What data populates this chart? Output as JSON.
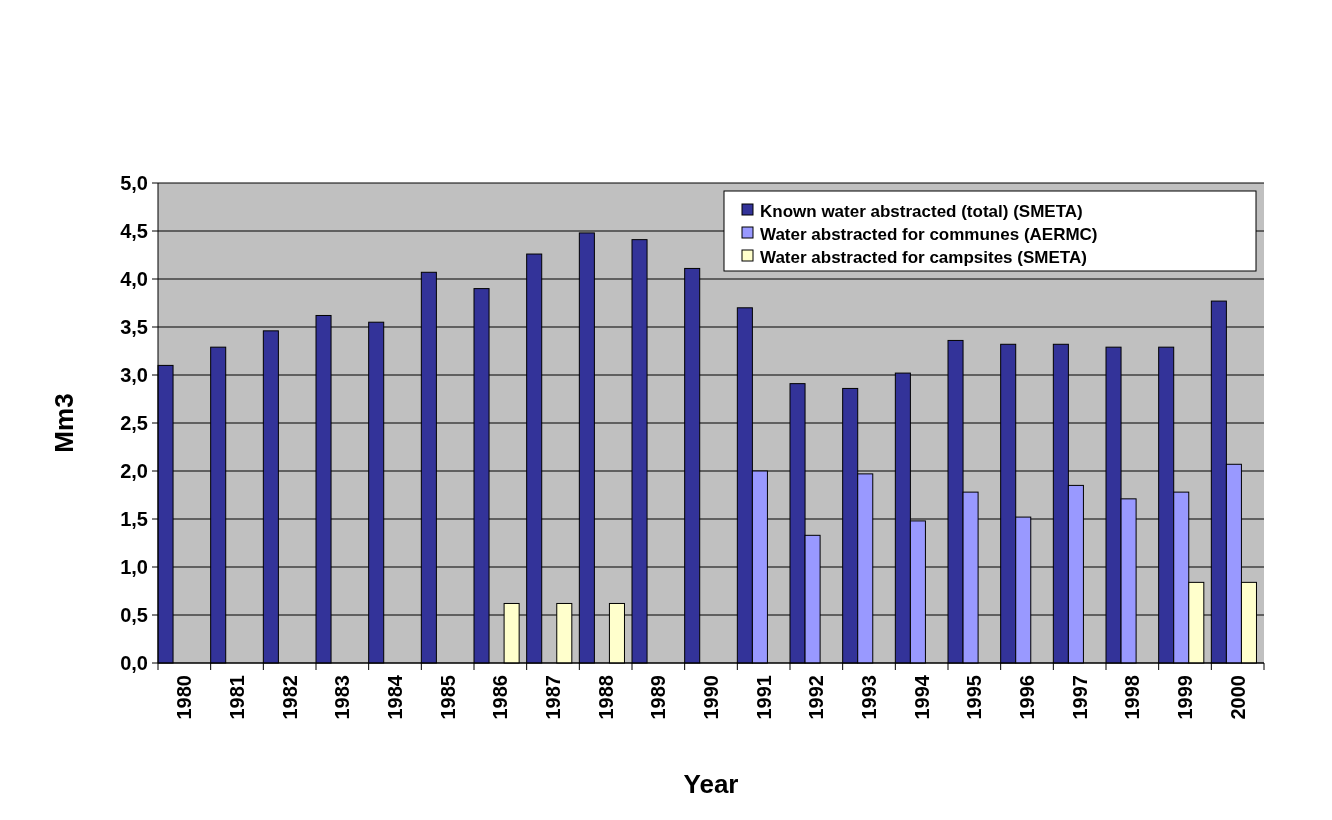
{
  "chart_data": {
    "type": "bar",
    "xlabel": "Year",
    "ylabel": "Mm3",
    "categories": [
      "1980",
      "1981",
      "1982",
      "1983",
      "1984",
      "1985",
      "1986",
      "1987",
      "1988",
      "1989",
      "1990",
      "1991",
      "1992",
      "1993",
      "1994",
      "1995",
      "1996",
      "1997",
      "1998",
      "1999",
      "2000"
    ],
    "series": [
      {
        "name": "Known water abstracted (total) (SMETA)",
        "color": "#333399",
        "values": [
          3.1,
          3.29,
          3.46,
          3.62,
          3.55,
          4.07,
          3.9,
          4.26,
          4.48,
          4.41,
          4.11,
          3.7,
          2.91,
          2.86,
          3.02,
          3.36,
          3.32,
          3.32,
          3.29,
          3.29,
          3.77
        ]
      },
      {
        "name": "Water abstracted for communes (AERMC)",
        "color": "#9999ff",
        "values": [
          null,
          null,
          null,
          null,
          null,
          null,
          null,
          null,
          null,
          null,
          null,
          2.0,
          1.33,
          1.97,
          1.48,
          1.78,
          1.52,
          1.85,
          1.71,
          1.78,
          2.07
        ]
      },
      {
        "name": "Water abstracted for campsites (SMETA)",
        "color": "#ffffcc",
        "values": [
          null,
          null,
          null,
          null,
          null,
          null,
          0.62,
          0.62,
          0.62,
          null,
          null,
          null,
          null,
          null,
          null,
          null,
          null,
          null,
          null,
          0.84,
          0.84
        ]
      }
    ],
    "ylim": [
      0,
      5
    ],
    "yticks": [
      {
        "value": 0,
        "label": "0,0"
      },
      {
        "value": 0.5,
        "label": "0,5"
      },
      {
        "value": 1,
        "label": "1,0"
      },
      {
        "value": 1.5,
        "label": "1,5"
      },
      {
        "value": 2,
        "label": "2,0"
      },
      {
        "value": 2.5,
        "label": "2,5"
      },
      {
        "value": 3,
        "label": "3,0"
      },
      {
        "value": 3.5,
        "label": "3,5"
      },
      {
        "value": 4,
        "label": "4,0"
      },
      {
        "value": 4.5,
        "label": "4,5"
      },
      {
        "value": 5,
        "label": "5,0"
      }
    ],
    "grid": "y",
    "legend": "top right"
  }
}
